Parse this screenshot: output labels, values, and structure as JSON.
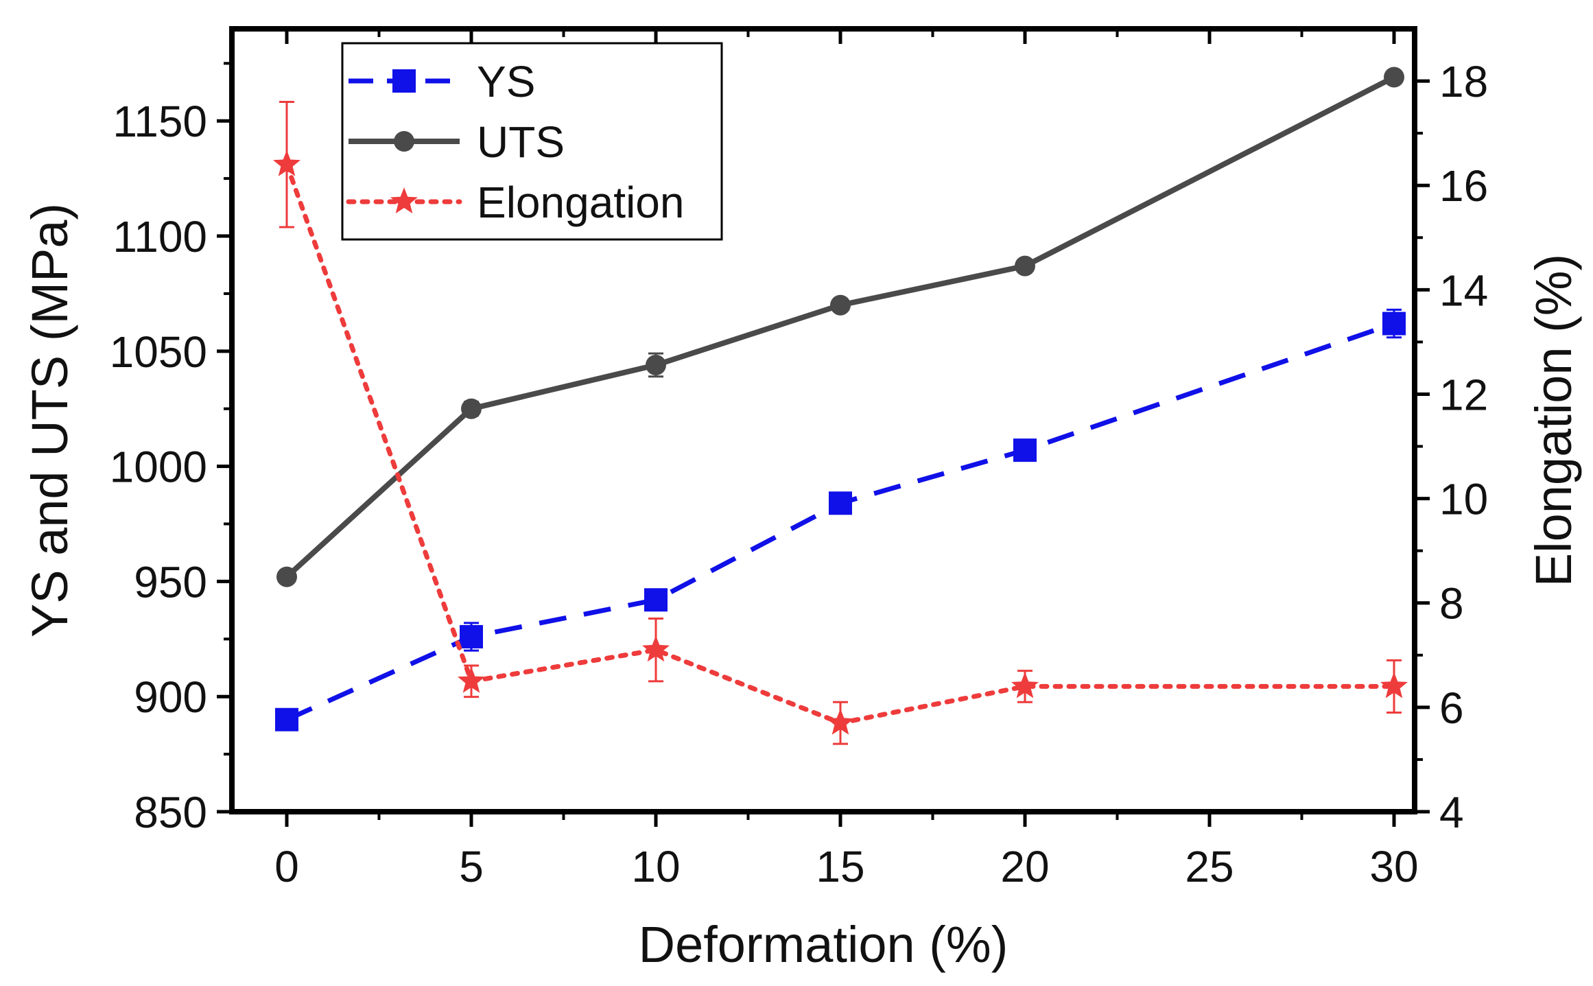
{
  "chart_data": {
    "type": "line",
    "title": "",
    "xlabel": "Deformation (%)",
    "ylabel_left": "YS and UTS (MPa)",
    "ylabel_right": "Elongation (%)",
    "x_categories": [
      "0",
      "5",
      "10",
      "15",
      "20",
      "25",
      "30"
    ],
    "ylim_left": [
      850,
      1190
    ],
    "yticks_left": [
      850,
      900,
      950,
      1000,
      1050,
      1100,
      1150
    ],
    "ylim_right": [
      4,
      19
    ],
    "yticks_right": [
      4,
      6,
      8,
      10,
      12,
      14,
      16,
      18
    ],
    "grid": false,
    "legend_position": "top-left",
    "series": [
      {
        "name": "YS",
        "axis": "left",
        "style": "dashed",
        "marker": "square",
        "color": "#1010e8",
        "x": [
          "0",
          "5",
          "10",
          "15",
          "20",
          "30"
        ],
        "values": [
          890,
          926,
          942,
          984,
          1007,
          1062
        ],
        "errors": [
          2,
          6,
          3,
          3,
          3,
          6
        ]
      },
      {
        "name": "UTS",
        "axis": "left",
        "style": "solid",
        "marker": "circle",
        "color": "#4a4a4a",
        "x": [
          "0",
          "5",
          "10",
          "15",
          "20",
          "30"
        ],
        "values": [
          952,
          1025,
          1044,
          1070,
          1087,
          1169
        ],
        "errors": [
          2,
          3,
          5,
          2,
          2,
          2
        ]
      },
      {
        "name": "Elongation",
        "axis": "right",
        "style": "dotted",
        "marker": "star",
        "color": "#ee3b3b",
        "x": [
          "0",
          "5",
          "10",
          "15",
          "20",
          "30"
        ],
        "values": [
          16.4,
          6.5,
          7.1,
          5.7,
          6.4,
          6.4
        ],
        "errors": [
          1.2,
          0.3,
          0.6,
          0.4,
          0.3,
          0.5
        ]
      }
    ]
  }
}
